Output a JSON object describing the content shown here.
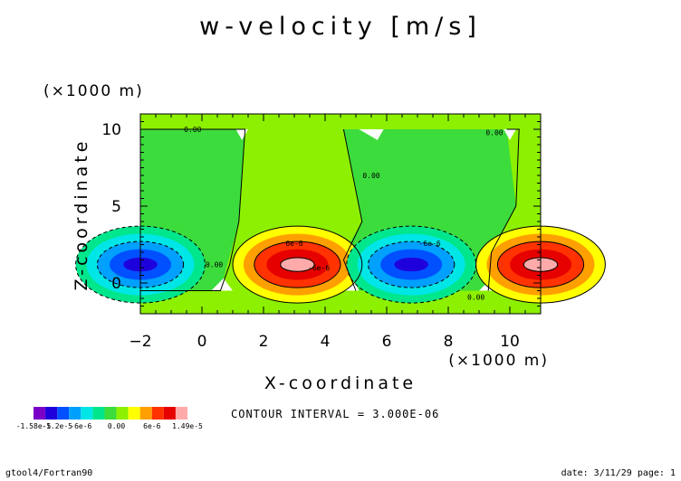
{
  "chart_data": {
    "type": "contour",
    "title": "w-velocity [m/s]",
    "xlabel": "X-coordinate",
    "ylabel": "Z-coordinate",
    "x_unit": "(×1000 m)",
    "y_unit": "(×1000 m)",
    "xlim": [
      -2,
      11
    ],
    "ylim": [
      -2,
      11
    ],
    "x_ticks": [
      -2,
      0,
      2,
      4,
      6,
      8,
      10
    ],
    "y_ticks": [
      0,
      5,
      10
    ],
    "contour_interval_text": "CONTOUR INTERVAL = 3.000E-06",
    "colorbar": {
      "min_label": "-1.58e-5",
      "labels": [
        "-1.58e-5",
        "-1.2e-5",
        "-6e-6",
        "0.00",
        "6e-6",
        "1.49e-5"
      ],
      "min": -1.58e-05,
      "max": 1.49e-05,
      "colors": [
        "#7a00c8",
        "#1e00dc",
        "#0050ff",
        "#00a0ff",
        "#00e6e6",
        "#00e68c",
        "#3cdc3c",
        "#8cf000",
        "#ffff00",
        "#ffa000",
        "#ff3200",
        "#e60000",
        "#ffaaaa"
      ]
    },
    "contour_labels": [
      {
        "text": "0.00",
        "x": -0.3,
        "y": 10.0
      },
      {
        "text": "0.00",
        "x": 9.5,
        "y": 9.8
      },
      {
        "text": "0.00",
        "x": 5.5,
        "y": 7.0
      },
      {
        "text": "0.00",
        "x": 0.4,
        "y": 1.2
      },
      {
        "text": "0.00",
        "x": 8.9,
        "y": -0.9
      },
      {
        "text": "6e-6",
        "x": 3.0,
        "y": 2.6
      },
      {
        "text": "-6e-6",
        "x": 7.4,
        "y": 2.6
      },
      {
        "text": "-6e-6",
        "x": 3.8,
        "y": 1.0
      }
    ],
    "features": [
      {
        "kind": "max",
        "x": 3.1,
        "y": 1.2,
        "value": 1.49e-05
      },
      {
        "kind": "min",
        "x": 6.8,
        "y": 1.2,
        "value": -1.58e-05
      },
      {
        "kind": "min",
        "x": -2.0,
        "y": 1.2,
        "value": -1.58e-05
      },
      {
        "kind": "max",
        "x": 11.0,
        "y": 1.2,
        "value": 1.49e-05
      }
    ]
  },
  "footer": {
    "left": "gtool4/Fortran90",
    "right": "date: 3/11/29 page: 1"
  }
}
